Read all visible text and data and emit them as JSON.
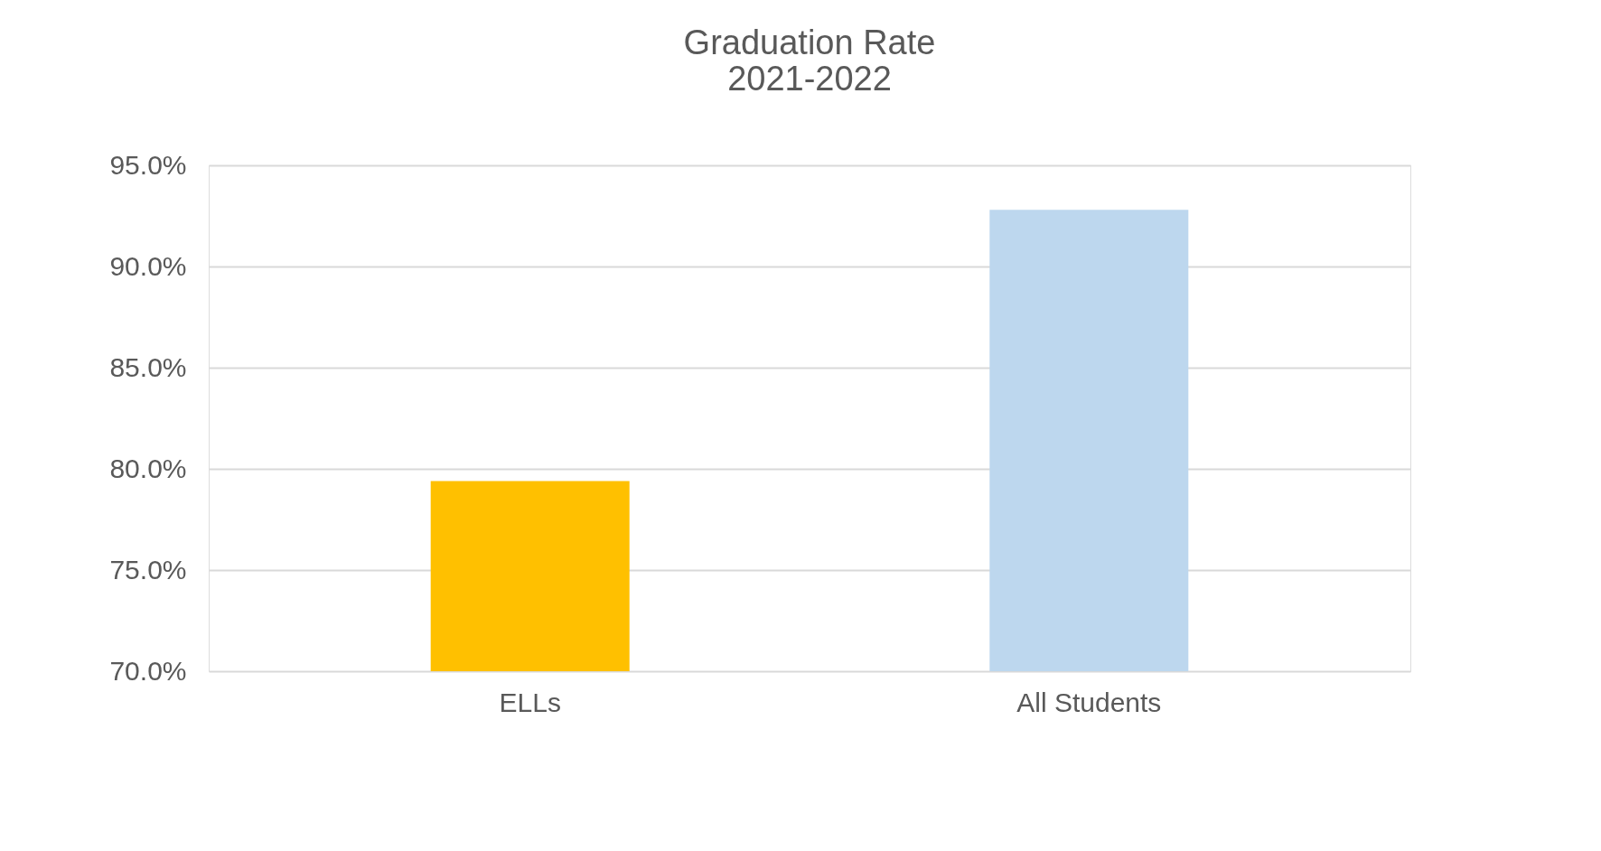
{
  "chart_data": {
    "type": "bar",
    "title": [
      "Graduation Rate",
      "2021-2022"
    ],
    "categories": [
      "ELLs",
      "All Students"
    ],
    "values": [
      79.4,
      92.8
    ],
    "colors": [
      "#ffc000",
      "#bdd7ee"
    ],
    "ylim": [
      70,
      95
    ],
    "yticks": [
      {
        "value": 70,
        "label": "70.0%"
      },
      {
        "value": 75,
        "label": "75.0%"
      },
      {
        "value": 80,
        "label": "80.0%"
      },
      {
        "value": 85,
        "label": "85.0%"
      },
      {
        "value": 90,
        "label": "90.0%"
      },
      {
        "value": 95,
        "label": "95.0%"
      }
    ],
    "grid": "y"
  }
}
